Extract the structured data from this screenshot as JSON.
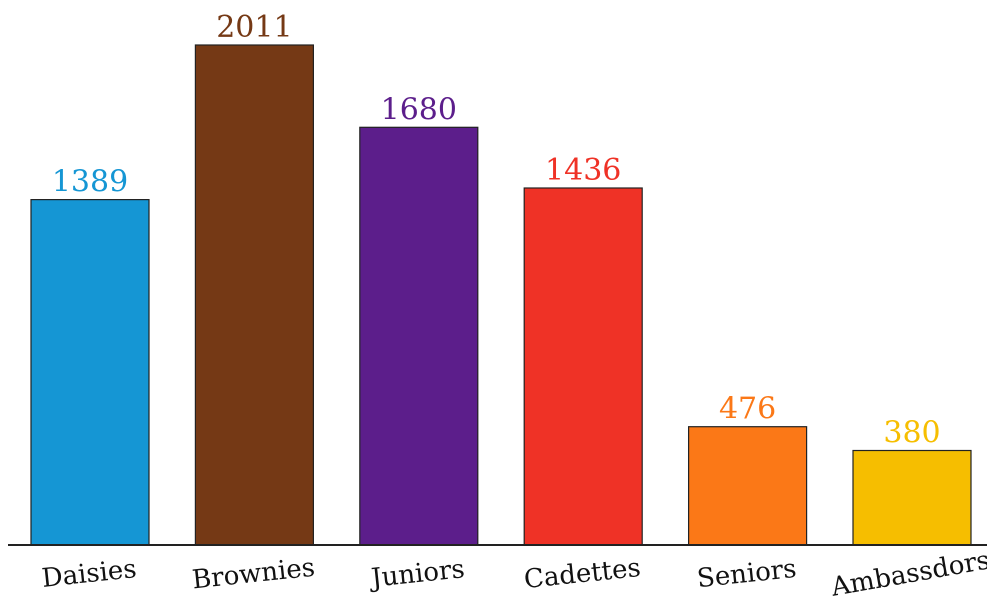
{
  "chart_data": {
    "type": "bar",
    "title": "",
    "xlabel": "",
    "ylabel": "",
    "categories": [
      "Daisies",
      "Brownies",
      "Juniors",
      "Cadettes",
      "Seniors",
      "Ambassdors"
    ],
    "values": [
      1389,
      2011,
      1680,
      1436,
      476,
      380
    ],
    "colors": [
      "#1596d4",
      "#753915",
      "#5c1e8b",
      "#ef3226",
      "#fb7817",
      "#f6be00"
    ],
    "ylim": [
      0,
      2011
    ],
    "grid": false,
    "legend": "none"
  }
}
